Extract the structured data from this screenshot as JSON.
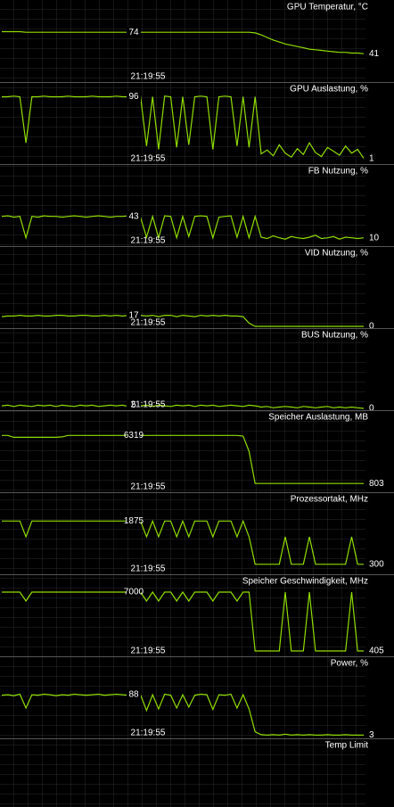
{
  "chart_data": [
    {
      "type": "line",
      "title": "GPU Temperatur, °C",
      "color": "#8fdc00",
      "ylim": [
        0,
        110
      ],
      "cursor_value": 74,
      "cursor_time": "21:19:55",
      "current_value": 41,
      "values": [
        75,
        75,
        75,
        75,
        74,
        74,
        74,
        74,
        74,
        74,
        74,
        74,
        74,
        74,
        74,
        74,
        74,
        74,
        74,
        74,
        74,
        74,
        74,
        74,
        74,
        74,
        74,
        74,
        74,
        74,
        74,
        74,
        74,
        74,
        74,
        74,
        74,
        74,
        74,
        74,
        74,
        74,
        73,
        70,
        66,
        62,
        59,
        56,
        54,
        52,
        50,
        48,
        47,
        46,
        45,
        44,
        43,
        43,
        42,
        42,
        41
      ]
    },
    {
      "type": "line",
      "title": "GPU Auslastung, %",
      "color": "#8fdc00",
      "ylim": [
        -5,
        105
      ],
      "cursor_value": 96,
      "cursor_time": "21:19:55",
      "current_value": 1,
      "values": [
        96,
        96,
        97,
        96,
        25,
        96,
        96,
        97,
        96,
        96,
        96,
        97,
        96,
        96,
        96,
        97,
        96,
        96,
        96,
        97,
        96,
        96,
        97,
        97,
        20,
        96,
        15,
        97,
        96,
        18,
        96,
        22,
        96,
        97,
        96,
        15,
        96,
        97,
        96,
        20,
        96,
        18,
        96,
        8,
        14,
        5,
        22,
        9,
        3,
        16,
        7,
        25,
        10,
        4,
        18,
        12,
        6,
        20,
        9,
        15,
        1
      ]
    },
    {
      "type": "line",
      "title": "FB Nutzung, %",
      "color": "#8fdc00",
      "ylim": [
        0,
        110
      ],
      "cursor_value": 43,
      "cursor_time": "21:19:55",
      "current_value": 10,
      "values": [
        43,
        44,
        42,
        43,
        10,
        43,
        42,
        44,
        43,
        43,
        42,
        43,
        44,
        43,
        42,
        43,
        44,
        43,
        42,
        43,
        43,
        44,
        43,
        42,
        11,
        43,
        10,
        44,
        43,
        10,
        43,
        12,
        43,
        44,
        43,
        10,
        42,
        43,
        44,
        11,
        43,
        10,
        43,
        11,
        9,
        13,
        10,
        8,
        12,
        10,
        9,
        11,
        14,
        9,
        10,
        12,
        8,
        11,
        10,
        9,
        10
      ]
    },
    {
      "type": "line",
      "title": "VID Nutzung, %",
      "color": "#8fdc00",
      "ylim": [
        0,
        110
      ],
      "cursor_value": 17,
      "cursor_time": "21:19:55",
      "current_value": 0,
      "values": [
        15,
        16,
        16,
        17,
        16,
        16,
        17,
        16,
        16,
        17,
        17,
        16,
        16,
        17,
        17,
        16,
        16,
        17,
        16,
        17,
        16,
        17,
        16,
        17,
        16,
        17,
        15,
        17,
        17,
        15,
        17,
        16,
        15,
        17,
        16,
        17,
        16,
        17,
        16,
        16,
        15,
        5,
        0,
        0,
        0,
        0,
        0,
        0,
        0,
        0,
        0,
        0,
        0,
        0,
        0,
        0,
        0,
        0,
        0,
        0,
        0
      ]
    },
    {
      "type": "line",
      "title": "BUS Nutzung, %",
      "color": "#8fdc00",
      "ylim": [
        0,
        110
      ],
      "cursor_value": 5,
      "cursor_time": "21:19:55",
      "current_value": 0,
      "values": [
        4,
        5,
        3,
        5,
        4,
        3,
        5,
        4,
        5,
        3,
        5,
        4,
        3,
        5,
        4,
        5,
        3,
        4,
        5,
        4,
        5,
        3,
        5,
        4,
        5,
        3,
        5,
        4,
        3,
        5,
        4,
        5,
        3,
        5,
        4,
        5,
        3,
        4,
        5,
        4,
        3,
        5,
        4,
        2,
        3,
        1,
        2,
        3,
        2,
        1,
        3,
        2,
        1,
        2,
        3,
        1,
        2,
        1,
        2,
        1,
        0
      ]
    },
    {
      "type": "line",
      "title": "Speicher Auslastung, MB",
      "color": "#8fdc00",
      "ylim": [
        0,
        8192
      ],
      "cursor_value": 6319,
      "cursor_time": "21:19:55",
      "current_value": 803,
      "values": [
        6319,
        6319,
        6100,
        6100,
        6100,
        6100,
        6100,
        6100,
        6100,
        6100,
        6150,
        6319,
        6319,
        6319,
        6319,
        6319,
        6319,
        6319,
        6319,
        6319,
        6319,
        6319,
        6319,
        6319,
        6319,
        6319,
        6319,
        6319,
        6319,
        6319,
        6319,
        6319,
        6319,
        6319,
        6319,
        6319,
        6319,
        6319,
        6319,
        6319,
        6250,
        4500,
        803,
        803,
        803,
        803,
        803,
        803,
        803,
        803,
        803,
        803,
        803,
        803,
        803,
        803,
        803,
        803,
        803,
        803,
        803
      ]
    },
    {
      "type": "line",
      "title": "Prozessortakt, MHz",
      "color": "#8fdc00",
      "ylim": [
        0,
        2600
      ],
      "cursor_value": 1875,
      "cursor_time": "21:19:55",
      "current_value": 300,
      "values": [
        1875,
        1875,
        1875,
        1875,
        1300,
        1875,
        1875,
        1875,
        1875,
        1875,
        1875,
        1875,
        1875,
        1875,
        1875,
        1875,
        1875,
        1875,
        1875,
        1875,
        1875,
        1875,
        1875,
        1875,
        1300,
        1875,
        1300,
        1875,
        1875,
        1300,
        1875,
        1300,
        1875,
        1875,
        1875,
        1300,
        1875,
        1875,
        1875,
        1300,
        1875,
        1300,
        300,
        300,
        300,
        300,
        300,
        1300,
        300,
        300,
        300,
        1300,
        300,
        300,
        300,
        300,
        300,
        300,
        1300,
        300,
        300
      ]
    },
    {
      "type": "line",
      "title": "Speicher Geschwindigkeit, MHz",
      "color": "#8fdc00",
      "ylim": [
        0,
        8000
      ],
      "cursor_value": 7000,
      "cursor_time": "21:19:55",
      "current_value": 405,
      "values": [
        7000,
        7000,
        7000,
        7000,
        6000,
        7000,
        7000,
        7000,
        7000,
        7000,
        7000,
        7000,
        7000,
        7000,
        7000,
        7000,
        7000,
        7000,
        7000,
        7000,
        7000,
        7000,
        7000,
        7000,
        6000,
        7000,
        6000,
        7000,
        7000,
        6000,
        7000,
        6000,
        7000,
        7000,
        7000,
        6000,
        7000,
        7000,
        7000,
        6000,
        7000,
        7000,
        405,
        405,
        405,
        405,
        405,
        7000,
        405,
        405,
        405,
        7000,
        405,
        405,
        405,
        405,
        405,
        405,
        7000,
        405,
        405
      ]
    },
    {
      "type": "line",
      "title": "Power, %",
      "color": "#8fdc00",
      "ylim": [
        0,
        150
      ],
      "cursor_value": 88,
      "cursor_time": "21:19:55",
      "current_value": 3,
      "values": [
        87,
        88,
        86,
        89,
        60,
        88,
        87,
        89,
        88,
        86,
        88,
        87,
        89,
        88,
        87,
        88,
        89,
        87,
        88,
        89,
        88,
        87,
        89,
        88,
        55,
        88,
        58,
        89,
        87,
        60,
        88,
        62,
        87,
        89,
        88,
        57,
        88,
        87,
        89,
        60,
        88,
        58,
        10,
        4,
        3,
        4,
        3,
        5,
        3,
        4,
        3,
        4,
        3,
        3,
        4,
        3,
        3,
        4,
        3,
        3,
        3
      ]
    },
    {
      "type": "line",
      "title": "Temp Limit"
    }
  ]
}
